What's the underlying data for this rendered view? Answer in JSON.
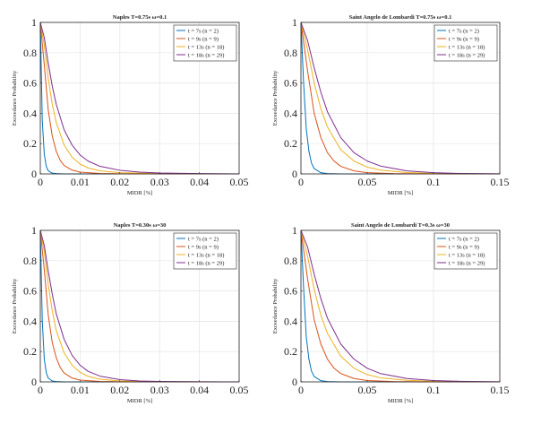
{
  "chart_data": [
    {
      "type": "line",
      "title": "Naples T=0.75s ω=0.1",
      "xlabel": "MIDR [%]",
      "ylabel": "Exceedance Probability",
      "xlim": [
        0,
        0.05
      ],
      "ylim": [
        0,
        1
      ],
      "xticks": [
        "0",
        "0.01",
        "0.02",
        "0.03",
        "0.04",
        "0.05"
      ],
      "yticks": [
        "0",
        "0.2",
        "0.4",
        "0.6",
        "0.8",
        "1"
      ],
      "grid": true,
      "legend_position": "top-right",
      "series": [
        {
          "name": "t = 7s (n = 2)",
          "color": "#0072BD",
          "x": [
            0,
            0.0005,
            0.001,
            0.0015,
            0.002,
            0.003,
            0.004,
            0.006,
            0.01,
            0.02,
            0.05
          ],
          "y": [
            1,
            0.35,
            0.13,
            0.05,
            0.02,
            0.005,
            0.002,
            0,
            0,
            0,
            0
          ]
        },
        {
          "name": "t = 9s (n = 9)",
          "color": "#D95319",
          "x": [
            0,
            0.001,
            0.002,
            0.003,
            0.004,
            0.005,
            0.006,
            0.008,
            0.01,
            0.015,
            0.02,
            0.03,
            0.05
          ],
          "y": [
            1,
            0.72,
            0.42,
            0.25,
            0.15,
            0.09,
            0.055,
            0.025,
            0.012,
            0.003,
            0.001,
            0,
            0
          ]
        },
        {
          "name": "t = 13s (n = 18)",
          "color": "#EDB120",
          "x": [
            0,
            0.001,
            0.002,
            0.003,
            0.004,
            0.006,
            0.008,
            0.01,
            0.012,
            0.015,
            0.02,
            0.03,
            0.04,
            0.05
          ],
          "y": [
            1,
            0.85,
            0.63,
            0.46,
            0.34,
            0.19,
            0.11,
            0.065,
            0.04,
            0.02,
            0.008,
            0.002,
            0,
            0
          ]
        },
        {
          "name": "t = 18s (n = 29)",
          "color": "#7E2F8E",
          "x": [
            0,
            0.001,
            0.002,
            0.003,
            0.004,
            0.006,
            0.008,
            0.01,
            0.012,
            0.015,
            0.02,
            0.025,
            0.03,
            0.04,
            0.05
          ],
          "y": [
            1,
            0.9,
            0.73,
            0.58,
            0.46,
            0.29,
            0.19,
            0.125,
            0.085,
            0.05,
            0.024,
            0.012,
            0.006,
            0.002,
            0
          ]
        }
      ]
    },
    {
      "type": "line",
      "title": "Saint Angelo de Lombardi T=0.75s ω=0.1",
      "xlabel": "MIDR [%]",
      "ylabel": "Exceedance Probability",
      "xlim": [
        0,
        0.15
      ],
      "ylim": [
        0,
        1
      ],
      "xticks": [
        "0",
        "0.05",
        "0.1",
        "0.15"
      ],
      "yticks": [
        "0",
        "0.2",
        "0.4",
        "0.6",
        "0.8",
        "1"
      ],
      "grid": true,
      "legend_position": "top-right",
      "series": [
        {
          "name": "t = 7s (n = 2)",
          "color": "#0072BD",
          "x": [
            0,
            0.002,
            0.004,
            0.006,
            0.008,
            0.01,
            0.015,
            0.02,
            0.03,
            0.15
          ],
          "y": [
            1,
            0.6,
            0.3,
            0.15,
            0.07,
            0.035,
            0.008,
            0.002,
            0,
            0
          ]
        },
        {
          "name": "t = 9s (n = 9)",
          "color": "#D95319",
          "x": [
            0,
            0.005,
            0.01,
            0.015,
            0.02,
            0.025,
            0.03,
            0.04,
            0.05,
            0.07,
            0.1,
            0.15
          ],
          "y": [
            1,
            0.68,
            0.4,
            0.24,
            0.14,
            0.085,
            0.05,
            0.02,
            0.008,
            0.002,
            0,
            0
          ]
        },
        {
          "name": "t = 13s (n = 18)",
          "color": "#EDB120",
          "x": [
            0,
            0.005,
            0.01,
            0.015,
            0.02,
            0.03,
            0.04,
            0.05,
            0.06,
            0.08,
            0.1,
            0.12,
            0.15
          ],
          "y": [
            1,
            0.82,
            0.6,
            0.43,
            0.31,
            0.16,
            0.085,
            0.045,
            0.025,
            0.009,
            0.003,
            0.001,
            0
          ]
        },
        {
          "name": "t = 18s (n = 29)",
          "color": "#7E2F8E",
          "x": [
            0,
            0.005,
            0.01,
            0.015,
            0.02,
            0.03,
            0.04,
            0.05,
            0.06,
            0.08,
            0.1,
            0.12,
            0.15
          ],
          "y": [
            1,
            0.88,
            0.7,
            0.54,
            0.41,
            0.24,
            0.14,
            0.085,
            0.052,
            0.02,
            0.008,
            0.003,
            0.001
          ]
        }
      ]
    },
    {
      "type": "line",
      "title": "Naples T=0.30s ω=30",
      "xlabel": "MIDR [%]",
      "ylabel": "Exceedance Probability",
      "xlim": [
        0,
        0.05
      ],
      "ylim": [
        0,
        1
      ],
      "xticks": [
        "0",
        "0.01",
        "0.02",
        "0.03",
        "0.04",
        "0.05"
      ],
      "yticks": [
        "0",
        "0.2",
        "0.4",
        "0.6",
        "0.8",
        "1"
      ],
      "grid": true,
      "legend_position": "top-right",
      "series": [
        {
          "name": "t = 7s (n = 2)",
          "color": "#0072BD",
          "x": [
            0,
            0.0005,
            0.001,
            0.0015,
            0.002,
            0.003,
            0.004,
            0.006,
            0.01,
            0.05
          ],
          "y": [
            1,
            0.4,
            0.15,
            0.06,
            0.025,
            0.006,
            0.002,
            0,
            0,
            0
          ]
        },
        {
          "name": "t = 9s (n = 9)",
          "color": "#D95319",
          "x": [
            0,
            0.001,
            0.002,
            0.003,
            0.004,
            0.005,
            0.006,
            0.008,
            0.01,
            0.015,
            0.02,
            0.05
          ],
          "y": [
            1,
            0.74,
            0.44,
            0.26,
            0.16,
            0.095,
            0.058,
            0.025,
            0.012,
            0.003,
            0.001,
            0
          ]
        },
        {
          "name": "t = 13s (n = 18)",
          "color": "#EDB120",
          "x": [
            0,
            0.001,
            0.002,
            0.003,
            0.004,
            0.006,
            0.008,
            0.01,
            0.012,
            0.015,
            0.02,
            0.03,
            0.05
          ],
          "y": [
            1,
            0.86,
            0.64,
            0.47,
            0.34,
            0.19,
            0.11,
            0.063,
            0.037,
            0.018,
            0.006,
            0.001,
            0
          ]
        },
        {
          "name": "t = 18s (n = 29)",
          "color": "#7E2F8E",
          "x": [
            0,
            0.001,
            0.002,
            0.003,
            0.004,
            0.006,
            0.008,
            0.01,
            0.012,
            0.015,
            0.02,
            0.025,
            0.03,
            0.04,
            0.05
          ],
          "y": [
            1,
            0.9,
            0.73,
            0.58,
            0.45,
            0.28,
            0.175,
            0.11,
            0.07,
            0.038,
            0.015,
            0.006,
            0.003,
            0.001,
            0
          ]
        }
      ]
    },
    {
      "type": "line",
      "title": "Saint Angelo de Lombardi T=0.3s ω=30",
      "xlabel": "MIDR [%]",
      "ylabel": "Exceedance Probability",
      "xlim": [
        0,
        0.15
      ],
      "ylim": [
        0,
        1
      ],
      "xticks": [
        "0",
        "0.05",
        "0.1",
        "0.15"
      ],
      "yticks": [
        "0",
        "0.2",
        "0.4",
        "0.6",
        "0.8",
        "1"
      ],
      "grid": true,
      "legend_position": "top-right",
      "series": [
        {
          "name": "t = 7s (n = 2)",
          "color": "#0072BD",
          "x": [
            0,
            0.002,
            0.004,
            0.006,
            0.008,
            0.01,
            0.015,
            0.02,
            0.03,
            0.15
          ],
          "y": [
            1,
            0.62,
            0.3,
            0.15,
            0.07,
            0.035,
            0.008,
            0.002,
            0,
            0
          ]
        },
        {
          "name": "t = 9s (n = 9)",
          "color": "#D95319",
          "x": [
            0,
            0.005,
            0.01,
            0.015,
            0.02,
            0.025,
            0.03,
            0.04,
            0.05,
            0.07,
            0.1,
            0.15
          ],
          "y": [
            1,
            0.68,
            0.41,
            0.25,
            0.15,
            0.09,
            0.055,
            0.022,
            0.009,
            0.002,
            0,
            0
          ]
        },
        {
          "name": "t = 13s (n = 18)",
          "color": "#EDB120",
          "x": [
            0,
            0.005,
            0.01,
            0.015,
            0.02,
            0.03,
            0.04,
            0.05,
            0.06,
            0.08,
            0.1,
            0.12,
            0.15
          ],
          "y": [
            1,
            0.83,
            0.61,
            0.44,
            0.32,
            0.17,
            0.09,
            0.048,
            0.027,
            0.01,
            0.004,
            0.001,
            0
          ]
        },
        {
          "name": "t = 18s (n = 29)",
          "color": "#7E2F8E",
          "x": [
            0,
            0.005,
            0.01,
            0.015,
            0.02,
            0.03,
            0.04,
            0.05,
            0.06,
            0.08,
            0.1,
            0.12,
            0.15
          ],
          "y": [
            1,
            0.89,
            0.71,
            0.55,
            0.42,
            0.25,
            0.15,
            0.09,
            0.055,
            0.022,
            0.009,
            0.004,
            0.001
          ]
        }
      ]
    }
  ]
}
